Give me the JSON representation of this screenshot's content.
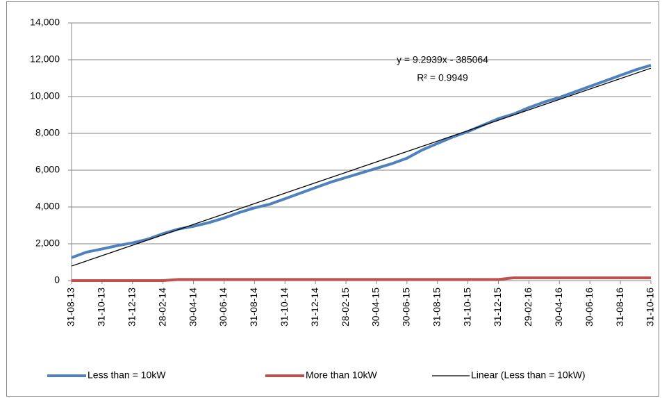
{
  "chart_data": {
    "type": "line",
    "categories": [
      "31-08-13",
      null,
      "31-10-13",
      null,
      "31-12-13",
      null,
      "28-02-14",
      null,
      "30-04-14",
      null,
      "30-06-14",
      null,
      "31-08-14",
      null,
      "31-10-14",
      null,
      "31-12-14",
      null,
      "28-02-15",
      null,
      "30-04-15",
      null,
      "30-06-15",
      null,
      "31-08-15",
      null,
      "31-10-15",
      null,
      "31-12-15",
      null,
      "29-02-16",
      null,
      "30-04-16",
      null,
      "30-06-16",
      null,
      "31-08-16",
      null,
      "31-10-16"
    ],
    "series": [
      {
        "name": "Less than = 10kW",
        "color": "#4f81bd",
        "values": [
          1250,
          1550,
          1720,
          1900,
          2050,
          2250,
          2550,
          2800,
          2950,
          3150,
          3400,
          3700,
          3950,
          4150,
          4450,
          4750,
          5050,
          5350,
          5600,
          5850,
          6100,
          6350,
          6650,
          7100,
          7450,
          7800,
          8100,
          8450,
          8800,
          9050,
          9400,
          9700,
          9950,
          10250,
          10550,
          10850,
          11150,
          11450,
          11700
        ]
      },
      {
        "name": "More than 10kW",
        "color": "#c0504d",
        "values": [
          0,
          0,
          0,
          0,
          0,
          0,
          0,
          60,
          60,
          60,
          60,
          60,
          60,
          60,
          60,
          60,
          60,
          60,
          60,
          60,
          60,
          60,
          60,
          60,
          60,
          60,
          60,
          60,
          60,
          150,
          150,
          150,
          150,
          150,
          150,
          150,
          150,
          150,
          150
        ]
      }
    ],
    "trendline": {
      "name": "Linear (Less than = 10kW)",
      "color": "#000000",
      "start": 790,
      "end": 11540
    },
    "annotations": [
      "y = 9.2939x - 385064",
      "R² = 0.9949"
    ],
    "ylim": [
      0,
      14000
    ],
    "yticks": [
      0,
      {
        "value": 2000,
        "label": "2,000"
      },
      {
        "value": 4000,
        "label": "4,000"
      },
      {
        "value": 6000,
        "label": "6,000"
      },
      {
        "value": 8000,
        "label": "8,000"
      },
      {
        "value": 10000,
        "label": "10,000"
      },
      {
        "value": 12000,
        "label": "12,000"
      },
      {
        "value": 14000,
        "label": "14,000"
      }
    ],
    "grid": true,
    "legend": "bottom"
  }
}
